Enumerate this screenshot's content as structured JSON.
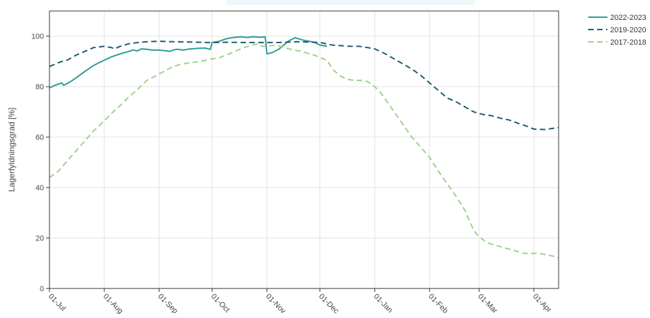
{
  "chart_data": {
    "type": "line",
    "title": "",
    "ylabel": "Lagerfyldningsgrad [%]",
    "xlabel": "",
    "ylim": [
      0,
      110
    ],
    "yticks": [
      0,
      20,
      40,
      60,
      80,
      100
    ],
    "x_day_range": [
      0,
      288
    ],
    "x_ticks": [
      {
        "label": "01-Jul",
        "day": 0
      },
      {
        "label": "01-Aug",
        "day": 31
      },
      {
        "label": "01-Sep",
        "day": 62
      },
      {
        "label": "01-Oct",
        "day": 92
      },
      {
        "label": "01-Nov",
        "day": 123
      },
      {
        "label": "01-Dec",
        "day": 153
      },
      {
        "label": "01-Jan",
        "day": 184
      },
      {
        "label": "01-Feb",
        "day": 215
      },
      {
        "label": "01-Mar",
        "day": 243
      },
      {
        "label": "01-Apr",
        "day": 274
      }
    ],
    "grid": true,
    "legend_position": "top-right",
    "series": [
      {
        "name": "2022-2023",
        "color": "#2a9d95",
        "dash": "solid",
        "points": [
          [
            0,
            79.5
          ],
          [
            3,
            80.5
          ],
          [
            5,
            81
          ],
          [
            7,
            81.5
          ],
          [
            8,
            80.5
          ],
          [
            12,
            82
          ],
          [
            16,
            84
          ],
          [
            20,
            86
          ],
          [
            24,
            88
          ],
          [
            28,
            89.5
          ],
          [
            31,
            90.5
          ],
          [
            35,
            91.8
          ],
          [
            40,
            93
          ],
          [
            45,
            94
          ],
          [
            47,
            94.5
          ],
          [
            50,
            94.2
          ],
          [
            52,
            95
          ],
          [
            55,
            94.8
          ],
          [
            58,
            94.5
          ],
          [
            62,
            94.5
          ],
          [
            65,
            94.3
          ],
          [
            68,
            94
          ],
          [
            70,
            94.5
          ],
          [
            72,
            94.8
          ],
          [
            76,
            94.5
          ],
          [
            78,
            94.8
          ],
          [
            80,
            95
          ],
          [
            84,
            95.2
          ],
          [
            88,
            95.3
          ],
          [
            91,
            94.8
          ],
          [
            92,
            97.5
          ],
          [
            96,
            98
          ],
          [
            100,
            99
          ],
          [
            104,
            99.5
          ],
          [
            108,
            99.8
          ],
          [
            112,
            99.5
          ],
          [
            115,
            99.8
          ],
          [
            120,
            99.6
          ],
          [
            122,
            99.8
          ],
          [
            123,
            93
          ],
          [
            126,
            93.5
          ],
          [
            130,
            95
          ],
          [
            135,
            98
          ],
          [
            139,
            99.4
          ],
          [
            143,
            98.5
          ],
          [
            147,
            98
          ],
          [
            150,
            97.5
          ],
          [
            153,
            96.5
          ],
          [
            157,
            96
          ]
        ]
      },
      {
        "name": "2019-2020",
        "color": "#1e5b70",
        "dash": "dashed",
        "points": [
          [
            0,
            88
          ],
          [
            5,
            89.5
          ],
          [
            7,
            90
          ],
          [
            10,
            90.5
          ],
          [
            15,
            92.5
          ],
          [
            20,
            94
          ],
          [
            25,
            95.5
          ],
          [
            31,
            96
          ],
          [
            35,
            95.5
          ],
          [
            37,
            95
          ],
          [
            40,
            96
          ],
          [
            45,
            97
          ],
          [
            50,
            97.5
          ],
          [
            55,
            97.8
          ],
          [
            62,
            98
          ],
          [
            70,
            97.8
          ],
          [
            80,
            97.7
          ],
          [
            90,
            97.5
          ],
          [
            92,
            97.5
          ],
          [
            100,
            97.6
          ],
          [
            110,
            97.5
          ],
          [
            123,
            97.5
          ],
          [
            130,
            97.5
          ],
          [
            140,
            97.8
          ],
          [
            150,
            97.6
          ],
          [
            153,
            97.5
          ],
          [
            160,
            96.5
          ],
          [
            170,
            96
          ],
          [
            175,
            96
          ],
          [
            180,
            95.5
          ],
          [
            184,
            95
          ],
          [
            190,
            93
          ],
          [
            195,
            91
          ],
          [
            200,
            89
          ],
          [
            205,
            87
          ],
          [
            210,
            84.5
          ],
          [
            215,
            81.5
          ],
          [
            220,
            78.5
          ],
          [
            225,
            75.5
          ],
          [
            230,
            74
          ],
          [
            235,
            72
          ],
          [
            240,
            70
          ],
          [
            245,
            69
          ],
          [
            250,
            68.5
          ],
          [
            255,
            67.5
          ],
          [
            260,
            66.8
          ],
          [
            265,
            65.5
          ],
          [
            270,
            64.3
          ],
          [
            274,
            63.2
          ],
          [
            280,
            63
          ],
          [
            285,
            63.5
          ],
          [
            288,
            63.8
          ]
        ]
      },
      {
        "name": "2017-2018",
        "color": "#9ed18a",
        "dash": "dashed",
        "points": [
          [
            0,
            44
          ],
          [
            5,
            46.5
          ],
          [
            10,
            50.5
          ],
          [
            15,
            54.5
          ],
          [
            20,
            58.5
          ],
          [
            25,
            62.5
          ],
          [
            31,
            66.5
          ],
          [
            36,
            70
          ],
          [
            40,
            72.5
          ],
          [
            45,
            76
          ],
          [
            50,
            79
          ],
          [
            55,
            82.5
          ],
          [
            58,
            83.5
          ],
          [
            62,
            85
          ],
          [
            66,
            86.5
          ],
          [
            70,
            88
          ],
          [
            75,
            89
          ],
          [
            80,
            89.5
          ],
          [
            85,
            90
          ],
          [
            92,
            91
          ],
          [
            96,
            91.5
          ],
          [
            100,
            92.5
          ],
          [
            105,
            94
          ],
          [
            110,
            95.5
          ],
          [
            115,
            96.5
          ],
          [
            118,
            97
          ],
          [
            120,
            96
          ],
          [
            123,
            96
          ],
          [
            128,
            96.5
          ],
          [
            133,
            95.5
          ],
          [
            138,
            94.5
          ],
          [
            143,
            94
          ],
          [
            147,
            93
          ],
          [
            150,
            92.5
          ],
          [
            153,
            91.5
          ],
          [
            157,
            90.5
          ],
          [
            160,
            87
          ],
          [
            164,
            84.5
          ],
          [
            168,
            83
          ],
          [
            172,
            82.5
          ],
          [
            176,
            82.5
          ],
          [
            180,
            82
          ],
          [
            184,
            80
          ],
          [
            188,
            77
          ],
          [
            192,
            73
          ],
          [
            196,
            69
          ],
          [
            200,
            65
          ],
          [
            205,
            60
          ],
          [
            210,
            56
          ],
          [
            215,
            52
          ],
          [
            220,
            46.5
          ],
          [
            225,
            41.5
          ],
          [
            230,
            36.5
          ],
          [
            235,
            31
          ],
          [
            240,
            23
          ],
          [
            243,
            20.5
          ],
          [
            248,
            18
          ],
          [
            253,
            17
          ],
          [
            258,
            16
          ],
          [
            263,
            15
          ],
          [
            268,
            14
          ],
          [
            272,
            13.8
          ],
          [
            276,
            14
          ],
          [
            280,
            13.5
          ],
          [
            285,
            12.8
          ],
          [
            288,
            12.2
          ]
        ]
      }
    ]
  }
}
